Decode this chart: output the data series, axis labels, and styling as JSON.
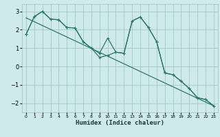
{
  "xlabel": "Humidex (Indice chaleur)",
  "bg_color": "#ceeaea",
  "grid_color": "#9bbfbf",
  "line_color": "#2a7a6a",
  "xlim": [
    -0.5,
    23.5
  ],
  "ylim": [
    -2.5,
    3.4
  ],
  "xticks": [
    0,
    1,
    2,
    3,
    4,
    5,
    6,
    7,
    8,
    9,
    10,
    11,
    12,
    13,
    14,
    15,
    16,
    17,
    18,
    19,
    20,
    21,
    22,
    23
  ],
  "yticks": [
    -2,
    -1,
    0,
    1,
    2,
    3
  ],
  "line1_x": [
    0,
    1,
    2,
    3,
    4,
    5,
    6,
    7,
    8,
    9,
    10,
    11,
    12,
    13,
    14,
    15,
    16,
    17,
    18,
    19,
    20,
    21,
    22,
    23
  ],
  "line1_y": [
    1.75,
    2.72,
    3.0,
    2.58,
    2.55,
    2.12,
    2.1,
    1.35,
    1.0,
    0.72,
    1.55,
    0.78,
    0.72,
    2.48,
    2.7,
    2.12,
    1.35,
    -0.35,
    -0.45,
    -0.8,
    -1.2,
    -1.7,
    -1.8,
    -2.15
  ],
  "line2_x": [
    0,
    1,
    2,
    3,
    4,
    5,
    6,
    7,
    8,
    9,
    10,
    11,
    12,
    13,
    14,
    15,
    16,
    17,
    18,
    19,
    20,
    21,
    22,
    23
  ],
  "line2_y": [
    1.75,
    2.72,
    3.0,
    2.58,
    2.55,
    2.12,
    2.1,
    1.35,
    1.0,
    0.5,
    0.6,
    0.78,
    0.72,
    2.48,
    2.7,
    2.12,
    1.35,
    -0.35,
    -0.45,
    -0.8,
    -1.2,
    -1.7,
    -1.8,
    -2.15
  ],
  "trend_x": [
    0,
    23
  ],
  "trend_y": [
    2.65,
    -2.15
  ]
}
